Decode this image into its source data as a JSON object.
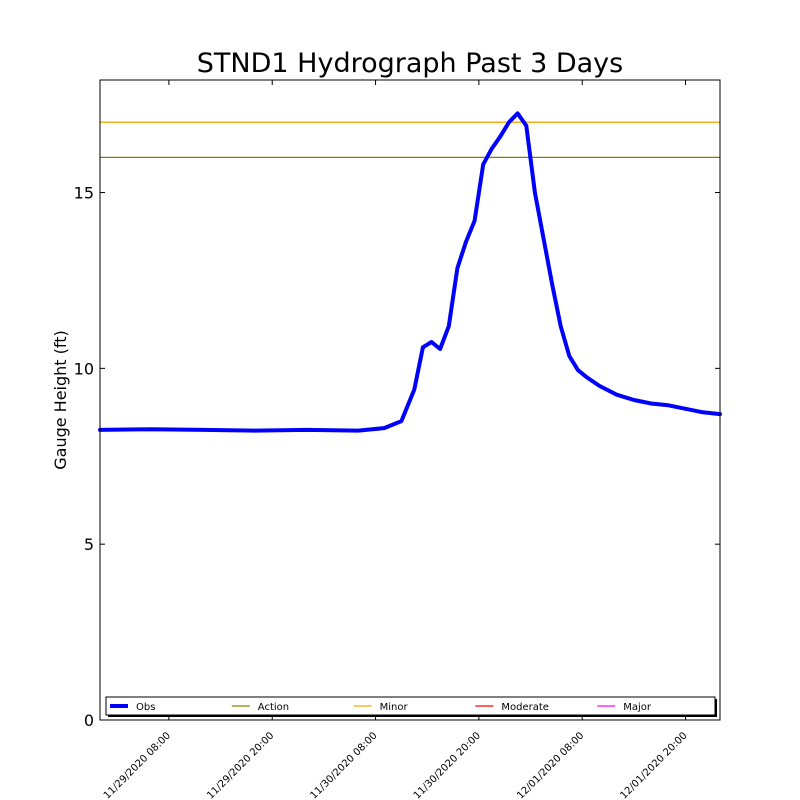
{
  "chart_data": {
    "type": "line",
    "title": "STND1 Hydrograph Past 3 Days",
    "xlabel": "",
    "ylabel": "Gauge Height (ft)",
    "xlim": [
      "2020-11-29 00:00",
      "2020-12-02 00:00"
    ],
    "ylim": [
      0,
      18.2
    ],
    "x_ticks": [
      "11/29/2020 08:00",
      "11/29/2020 20:00",
      "11/30/2020 08:00",
      "11/30/2020 20:00",
      "12/01/2020 08:00",
      "12/01/2020 20:00"
    ],
    "y_ticks": [
      0,
      5,
      10,
      15
    ],
    "grid": false,
    "legend_position": "bottom",
    "series": [
      {
        "name": "Obs",
        "color": "#0000ff",
        "x": [
          "2020-11-29 00:00",
          "2020-11-29 06:00",
          "2020-11-29 12:00",
          "2020-11-29 18:00",
          "2020-11-30 00:00",
          "2020-11-30 06:00",
          "2020-11-30 09:00",
          "2020-11-30 11:00",
          "2020-11-30 12:30",
          "2020-11-30 13:30",
          "2020-11-30 14:30",
          "2020-11-30 15:30",
          "2020-11-30 16:30",
          "2020-11-30 17:30",
          "2020-11-30 18:30",
          "2020-11-30 19:30",
          "2020-11-30 20:30",
          "2020-11-30 21:30",
          "2020-11-30 22:30",
          "2020-11-30 23:30",
          "2020-12-01 00:30",
          "2020-12-01 01:30",
          "2020-12-01 02:30",
          "2020-12-01 03:30",
          "2020-12-01 04:30",
          "2020-12-01 05:30",
          "2020-12-01 06:30",
          "2020-12-01 07:30",
          "2020-12-01 08:30",
          "2020-12-01 10:00",
          "2020-12-01 12:00",
          "2020-12-01 14:00",
          "2020-12-01 16:00",
          "2020-12-01 18:00",
          "2020-12-01 20:00",
          "2020-12-01 22:00",
          "2020-12-02 00:00"
        ],
        "values": [
          8.25,
          8.27,
          8.25,
          8.23,
          8.25,
          8.23,
          8.3,
          8.5,
          9.4,
          10.6,
          10.75,
          10.55,
          11.2,
          12.85,
          13.6,
          14.2,
          15.8,
          16.25,
          16.6,
          17.0,
          17.25,
          16.9,
          15.0,
          13.7,
          12.4,
          11.2,
          10.35,
          9.95,
          9.75,
          9.5,
          9.25,
          9.1,
          9.0,
          8.95,
          8.85,
          8.75,
          8.7
        ]
      }
    ],
    "thresholds": [
      {
        "name": "Action",
        "value": 16.0,
        "color": "#808000",
        "shown": true
      },
      {
        "name": "Minor",
        "value": 17.0,
        "color": "#ffa500",
        "shown": true
      },
      {
        "name": "Moderate",
        "value": null,
        "color": "#ff0000",
        "shown": false
      },
      {
        "name": "Major",
        "value": null,
        "color": "#ff00ff",
        "shown": false
      }
    ]
  }
}
